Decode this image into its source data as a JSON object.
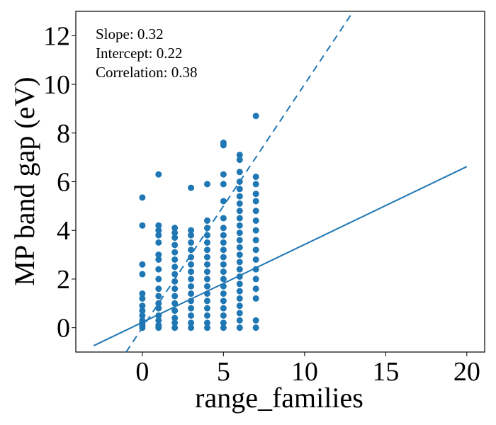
{
  "chart_data": {
    "type": "scatter",
    "x_label": "range_families",
    "y_label": "MP band gap (eV)",
    "annotations": [
      "Slope: 0.32",
      "Intercept: 0.22",
      "Correlation: 0.38"
    ],
    "xlim": [
      -4.1,
      21.1
    ],
    "ylim": [
      -1,
      13
    ],
    "xticks": [
      0,
      5,
      10,
      15,
      20
    ],
    "yticks": [
      0,
      2,
      4,
      6,
      8,
      10,
      12
    ],
    "series": [
      {
        "type": "scatter",
        "color": "#1f77b4",
        "x": [
          0,
          0,
          0,
          0,
          0,
          0,
          0,
          0,
          0,
          0,
          0,
          0,
          0,
          1,
          1,
          1,
          1,
          1,
          1,
          1,
          1,
          1,
          1,
          1,
          1,
          1,
          1,
          1,
          1,
          1,
          2,
          2,
          2,
          2,
          2,
          2,
          2,
          2,
          2,
          2,
          2,
          2,
          2,
          2,
          2,
          2,
          3,
          3,
          3,
          3,
          3,
          3,
          3,
          3,
          3,
          3,
          3,
          3,
          3,
          3,
          3,
          3,
          4,
          4,
          4,
          4,
          4,
          4,
          4,
          4,
          4,
          4,
          4,
          4,
          4,
          4,
          4,
          4,
          4,
          5,
          5,
          5,
          5,
          5,
          5,
          5,
          5,
          5,
          5,
          5,
          5,
          5,
          5,
          5,
          5,
          5,
          5,
          5,
          5,
          5,
          6,
          6,
          6,
          6,
          6,
          6,
          6,
          6,
          6,
          6,
          6,
          6,
          6,
          6,
          6,
          6,
          6,
          6,
          6,
          6,
          6,
          6,
          6,
          6,
          7,
          7,
          7,
          7,
          7,
          7,
          7,
          7,
          7,
          7,
          7,
          7,
          7,
          7,
          7,
          7,
          7
        ],
        "values": [
          0,
          0.1,
          0.2,
          0.3,
          0.5,
          0.7,
          0.9,
          1.2,
          1.4,
          2.2,
          2.6,
          4.2,
          5.35,
          0,
          0.1,
          0.3,
          0.5,
          0.8,
          1.0,
          1.3,
          1.6,
          2.0,
          2.4,
          2.8,
          3.0,
          3.5,
          3.8,
          4.0,
          4.2,
          6.3,
          0,
          0.2,
          0.4,
          0.7,
          1.0,
          1.3,
          1.6,
          1.9,
          2.2,
          2.5,
          2.8,
          3.1,
          3.4,
          3.7,
          3.9,
          4.1,
          0,
          0.2,
          0.5,
          0.8,
          1.1,
          1.4,
          1.7,
          2.0,
          2.3,
          2.6,
          2.9,
          3.2,
          3.5,
          3.8,
          4.0,
          5.75,
          0,
          0.2,
          0.5,
          0.8,
          1.1,
          1.4,
          1.7,
          2.0,
          2.3,
          2.6,
          2.9,
          3.2,
          3.5,
          3.8,
          4.1,
          4.4,
          5.9,
          0,
          0.2,
          0.5,
          0.8,
          1.1,
          1.4,
          1.7,
          2.0,
          2.3,
          2.6,
          2.9,
          3.2,
          3.5,
          3.8,
          4.1,
          4.5,
          5.2,
          5.9,
          6.3,
          7.5,
          7.6,
          0,
          0.3,
          0.6,
          0.9,
          1.2,
          1.5,
          1.8,
          2.1,
          2.4,
          2.7,
          3.0,
          3.3,
          3.6,
          3.9,
          4.2,
          4.5,
          4.8,
          5.1,
          5.4,
          5.7,
          6.0,
          6.4,
          6.9,
          7.1,
          0,
          0.3,
          1.2,
          1.6,
          2.0,
          2.4,
          2.8,
          3.2,
          3.6,
          4.0,
          4.4,
          4.8,
          5.2,
          5.5,
          5.9,
          6.2,
          8.7
        ]
      },
      {
        "type": "line",
        "color": "#1f77b4",
        "style": "solid",
        "x": [
          -3,
          20
        ],
        "values": [
          -0.74,
          6.62
        ]
      },
      {
        "type": "line",
        "color": "#1f77b4",
        "style": "dashed",
        "x": [
          -1,
          13
        ],
        "values": [
          -1,
          13
        ]
      }
    ]
  }
}
